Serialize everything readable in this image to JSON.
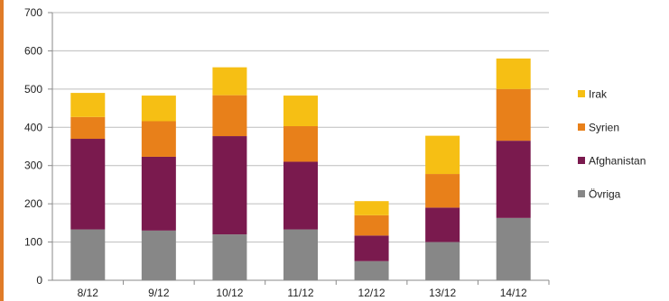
{
  "chart_data": {
    "type": "bar",
    "stacked": true,
    "categories": [
      "8/12",
      "9/12",
      "10/12",
      "11/12",
      "12/12",
      "13/12",
      "14/12"
    ],
    "series": [
      {
        "name": "Övriga",
        "color": "#878787",
        "values": [
          133,
          130,
          120,
          133,
          50,
          100,
          163
        ]
      },
      {
        "name": "Afghanistan",
        "color": "#7a1a4e",
        "values": [
          237,
          193,
          257,
          177,
          67,
          90,
          202
        ]
      },
      {
        "name": "Syrien",
        "color": "#e8801a",
        "values": [
          57,
          93,
          107,
          93,
          53,
          88,
          135
        ]
      },
      {
        "name": "Irak",
        "color": "#f6bf14",
        "values": [
          63,
          67,
          73,
          80,
          37,
          100,
          80
        ]
      }
    ],
    "title": "",
    "xlabel": "",
    "ylabel": "",
    "ylim": [
      0,
      700
    ],
    "yticks": [
      0,
      100,
      200,
      300,
      400,
      500,
      600,
      700
    ],
    "grid": true,
    "legend": "right"
  }
}
